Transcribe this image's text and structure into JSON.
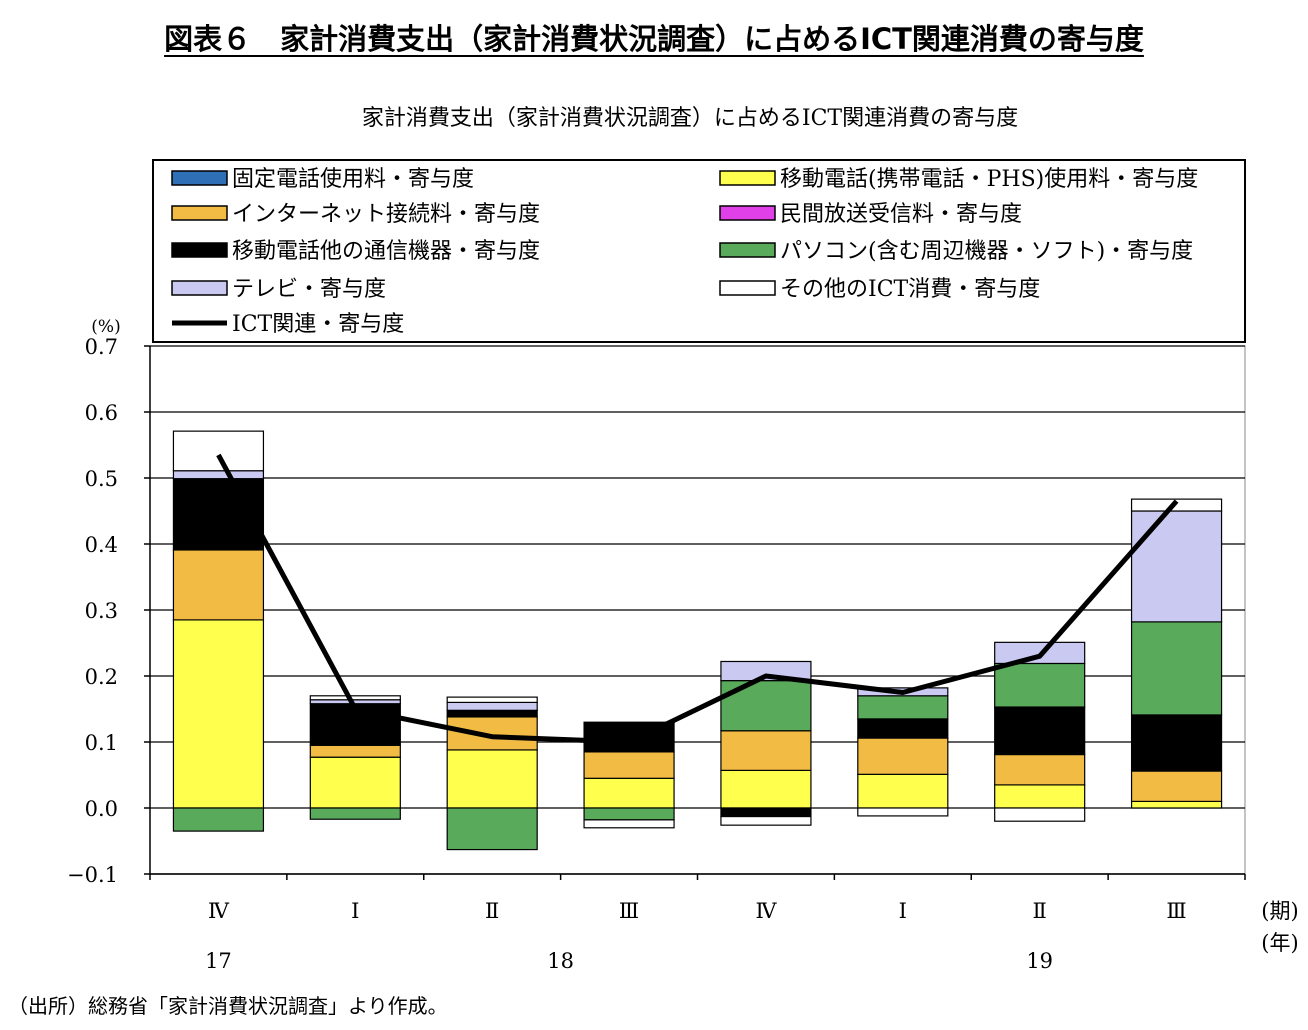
{
  "figure_title": "図表６　家計消費支出（家計消費状況調査）に占めるICT関連消費の寄与度",
  "source_note": "（出所）総務省「家計消費状況調査」より作成。",
  "chart_data": {
    "type": "bar",
    "stacked": true,
    "title": "家計消費支出（家計消費状況調査）に占めるICT関連消費の寄与度",
    "ylabel": "(%)",
    "xlabel_period": "(期)",
    "xlabel_year": "(年)",
    "ylim": [
      -0.1,
      0.7
    ],
    "yticks": [
      "0.7",
      "0.6",
      "0.5",
      "0.4",
      "0.3",
      "0.2",
      "0.1",
      "0.0",
      "−0.1"
    ],
    "categories": [
      "Ⅳ",
      "Ⅰ",
      "Ⅱ",
      "Ⅲ",
      "Ⅳ",
      "Ⅰ",
      "Ⅱ",
      "Ⅲ"
    ],
    "years": [
      {
        "label": "17",
        "index": 0
      },
      {
        "label": "18",
        "index": 2.5
      },
      {
        "label": "19",
        "index": 6
      }
    ],
    "grid": true,
    "legend_position": "top",
    "series": [
      {
        "name": "固定電話使用料・寄与度",
        "color": "#2f6fb5",
        "values": [
          0,
          0,
          0,
          0,
          0,
          0,
          0,
          0
        ]
      },
      {
        "name": "移動電話(携帯電話・PHS)使用料・寄与度",
        "color": "#ffff4d",
        "values": [
          0.285,
          0.077,
          0.088,
          0.045,
          0.057,
          0.051,
          0.035,
          0.01
        ]
      },
      {
        "name": "インターネット接続料・寄与度",
        "color": "#f2bc44",
        "values": [
          0.106,
          0.018,
          0.05,
          0.04,
          0.06,
          0.055,
          0.046,
          0.046
        ]
      },
      {
        "name": "民間放送受信料・寄与度",
        "color": "#e040e8",
        "values": [
          0,
          0,
          0,
          0,
          0,
          0,
          0,
          0
        ]
      },
      {
        "name": "移動電話他の通信機器・寄与度",
        "color": "#000000",
        "values": [
          0.108,
          0.063,
          0.01,
          0.045,
          -0.013,
          0.029,
          0.072,
          0.085
        ]
      },
      {
        "name": "パソコン(含む周辺機器・ソフト)・寄与度",
        "color": "#59aa5b",
        "values": [
          -0.035,
          -0.017,
          -0.063,
          -0.018,
          0.076,
          0.035,
          0.066,
          0.141
        ]
      },
      {
        "name": "テレビ・寄与度",
        "color": "#c9c9f2",
        "values": [
          0.012,
          0.006,
          0.012,
          0.0,
          0.029,
          0.012,
          0.032,
          0.168
        ]
      },
      {
        "name": "その他のICT消費・寄与度",
        "color": "#ffffff",
        "values": [
          0.06,
          0.006,
          0.008,
          -0.012,
          -0.013,
          -0.012,
          -0.02,
          0.018
        ]
      }
    ],
    "line": {
      "name": "ICT関連・寄与度",
      "color": "#000000",
      "values": [
        0.535,
        0.15,
        0.108,
        0.1,
        0.2,
        0.175,
        0.23,
        0.465
      ]
    }
  }
}
